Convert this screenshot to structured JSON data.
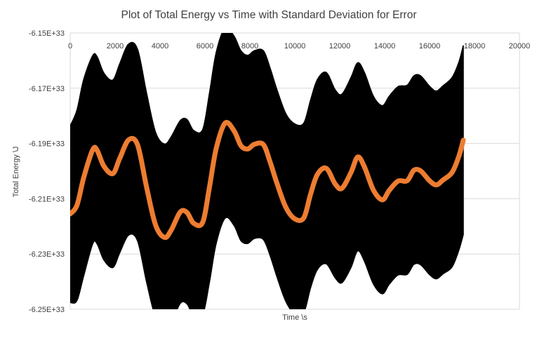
{
  "chart_data": {
    "type": "line",
    "title": "Plot of Total Energy vs Time with Standard Deviation for Error",
    "xlabel": "Time \\s",
    "ylabel": "Total Energy \\J",
    "xlim": [
      0,
      20000
    ],
    "ylim": [
      -6.25e+33,
      -6.15e+33
    ],
    "x_ticks": [
      0,
      2000,
      4000,
      6000,
      8000,
      10000,
      12000,
      14000,
      16000,
      18000,
      20000
    ],
    "x_tick_labels": [
      "0",
      "2000",
      "4000",
      "6000",
      "8000",
      "10000",
      "12000",
      "14000",
      "16000",
      "18000",
      "20000"
    ],
    "y_ticks": [
      -6.15e+33,
      -6.17e+33,
      -6.19e+33,
      -6.21e+33,
      -6.23e+33,
      -6.25e+33
    ],
    "y_tick_labels": [
      "-6.15E+33",
      "-6.17E+33",
      "-6.19E+33",
      "-6.21E+33",
      "-6.23E+33",
      "-6.25E+33"
    ],
    "x_axis_position": "top",
    "grid": "horizontal",
    "legend": "none",
    "error_band": "± standard deviation (filled black)",
    "series": [
      {
        "color": "#ED7D31",
        "x": [
          0,
          300,
          600,
          1000,
          1200,
          1500,
          1900,
          2200,
          2600,
          3000,
          3400,
          3800,
          4200,
          4500,
          4900,
          5200,
          5500,
          5900,
          6200,
          6500,
          6900,
          7300,
          7600,
          7900,
          8200,
          8600,
          8900,
          9200,
          9600,
          10000,
          10400,
          10700,
          11000,
          11400,
          11800,
          12100,
          12500,
          12800,
          13100,
          13500,
          13900,
          14200,
          14600,
          15000,
          15300,
          15600,
          16000,
          16300,
          16600,
          17000,
          17300,
          17500
        ],
        "y": [
          -6.2155e+33,
          -6.2124e+33,
          -6.2024e+33,
          -6.1923e+33,
          -6.1925e+33,
          -6.1982e+33,
          -6.2009e+33,
          -6.1955e+33,
          -6.1887e+33,
          -6.1905e+33,
          -6.2058e+33,
          -6.2195e+33,
          -6.224e+33,
          -6.2213e+33,
          -6.2148e+33,
          -6.215e+33,
          -6.2189e+33,
          -6.2185e+33,
          -6.2058e+33,
          -6.1918e+33,
          -6.1826e+33,
          -6.1855e+33,
          -6.1908e+33,
          -6.192e+33,
          -6.1903e+33,
          -6.1904e+33,
          -6.1967e+33,
          -6.2043e+33,
          -6.2131e+33,
          -6.2173e+33,
          -6.2169e+33,
          -6.2084e+33,
          -6.2013e+33,
          -6.199e+33,
          -6.2047e+33,
          -6.2062e+33,
          -6.2005e+33,
          -6.1949e+33,
          -6.1985e+33,
          -6.2069e+33,
          -6.2104e+33,
          -6.207e+33,
          -6.2036e+33,
          -6.2035e+33,
          -6.1997e+33,
          -6.1999e+33,
          -6.2035e+33,
          -6.205e+33,
          -6.2032e+33,
          -6.2005e+33,
          -6.1947e+33,
          -6.1888e+33
        ]
      }
    ],
    "band": {
      "upper": [
        -6.1836e+33,
        -6.1779e+33,
        -6.1668e+33,
        -6.1582e+33,
        -6.1586e+33,
        -6.1645e+33,
        -6.167e+33,
        -6.1612e+33,
        -6.154e+33,
        -6.1559e+33,
        -6.1717e+33,
        -6.1859e+33,
        -6.1902e+33,
        -6.1875e+33,
        -6.1817e+33,
        -6.1813e+33,
        -6.1853e+33,
        -6.1849e+33,
        -6.1717e+33,
        -6.157e+33,
        -6.1481e+33,
        -6.1512e+33,
        -6.1564e+33,
        -6.1581e+33,
        -6.1564e+33,
        -6.1564e+33,
        -6.1627e+33,
        -6.1704e+33,
        -6.1792e+33,
        -6.1829e+33,
        -6.1826e+33,
        -6.1743e+33,
        -6.1669e+33,
        -6.1643e+33,
        -6.1706e+33,
        -6.1721e+33,
        -6.1661e+33,
        -6.1608e+33,
        -6.1643e+33,
        -6.1729e+33,
        -6.1763e+33,
        -6.1729e+33,
        -6.1694e+33,
        -6.1689e+33,
        -6.1655e+33,
        -6.1655e+33,
        -6.1693e+33,
        -6.171e+33,
        -6.1691e+33,
        -6.1661e+33,
        -6.1606e+33,
        -6.1545e+33
      ],
      "lower": [
        -6.2476e+33,
        -6.2469e+33,
        -6.238e+33,
        -6.2264e+33,
        -6.2264e+33,
        -6.2322e+33,
        -6.2349e+33,
        -6.2297e+33,
        -6.2232e+33,
        -6.2253e+33,
        -6.2402e+33,
        -6.2531e+33,
        -6.258e+33,
        -6.2549e+33,
        -6.2479e+33,
        -6.2481e+33,
        -6.2525e+33,
        -6.252e+33,
        -6.2402e+33,
        -6.2262e+33,
        -6.217e+33,
        -6.2198e+33,
        -6.2252e+33,
        -6.2262e+33,
        -6.2244e+33,
        -6.2248e+33,
        -6.2306e+33,
        -6.2382e+33,
        -6.2472e+33,
        -6.2517e+33,
        -6.2512e+33,
        -6.2423e+33,
        -6.2357e+33,
        -6.2336e+33,
        -6.2387e+33,
        -6.2404e+33,
        -6.2349e+33,
        -6.2289e+33,
        -6.2327e+33,
        -6.2409e+33,
        -6.2444e+33,
        -6.241e+33,
        -6.2376e+33,
        -6.2374e+33,
        -6.2338e+33,
        -6.2339e+33,
        -6.2375e+33,
        -6.239e+33,
        -6.2372e+33,
        -6.2347e+33,
        -6.2287e+33,
        -6.223e+33
      ]
    }
  }
}
